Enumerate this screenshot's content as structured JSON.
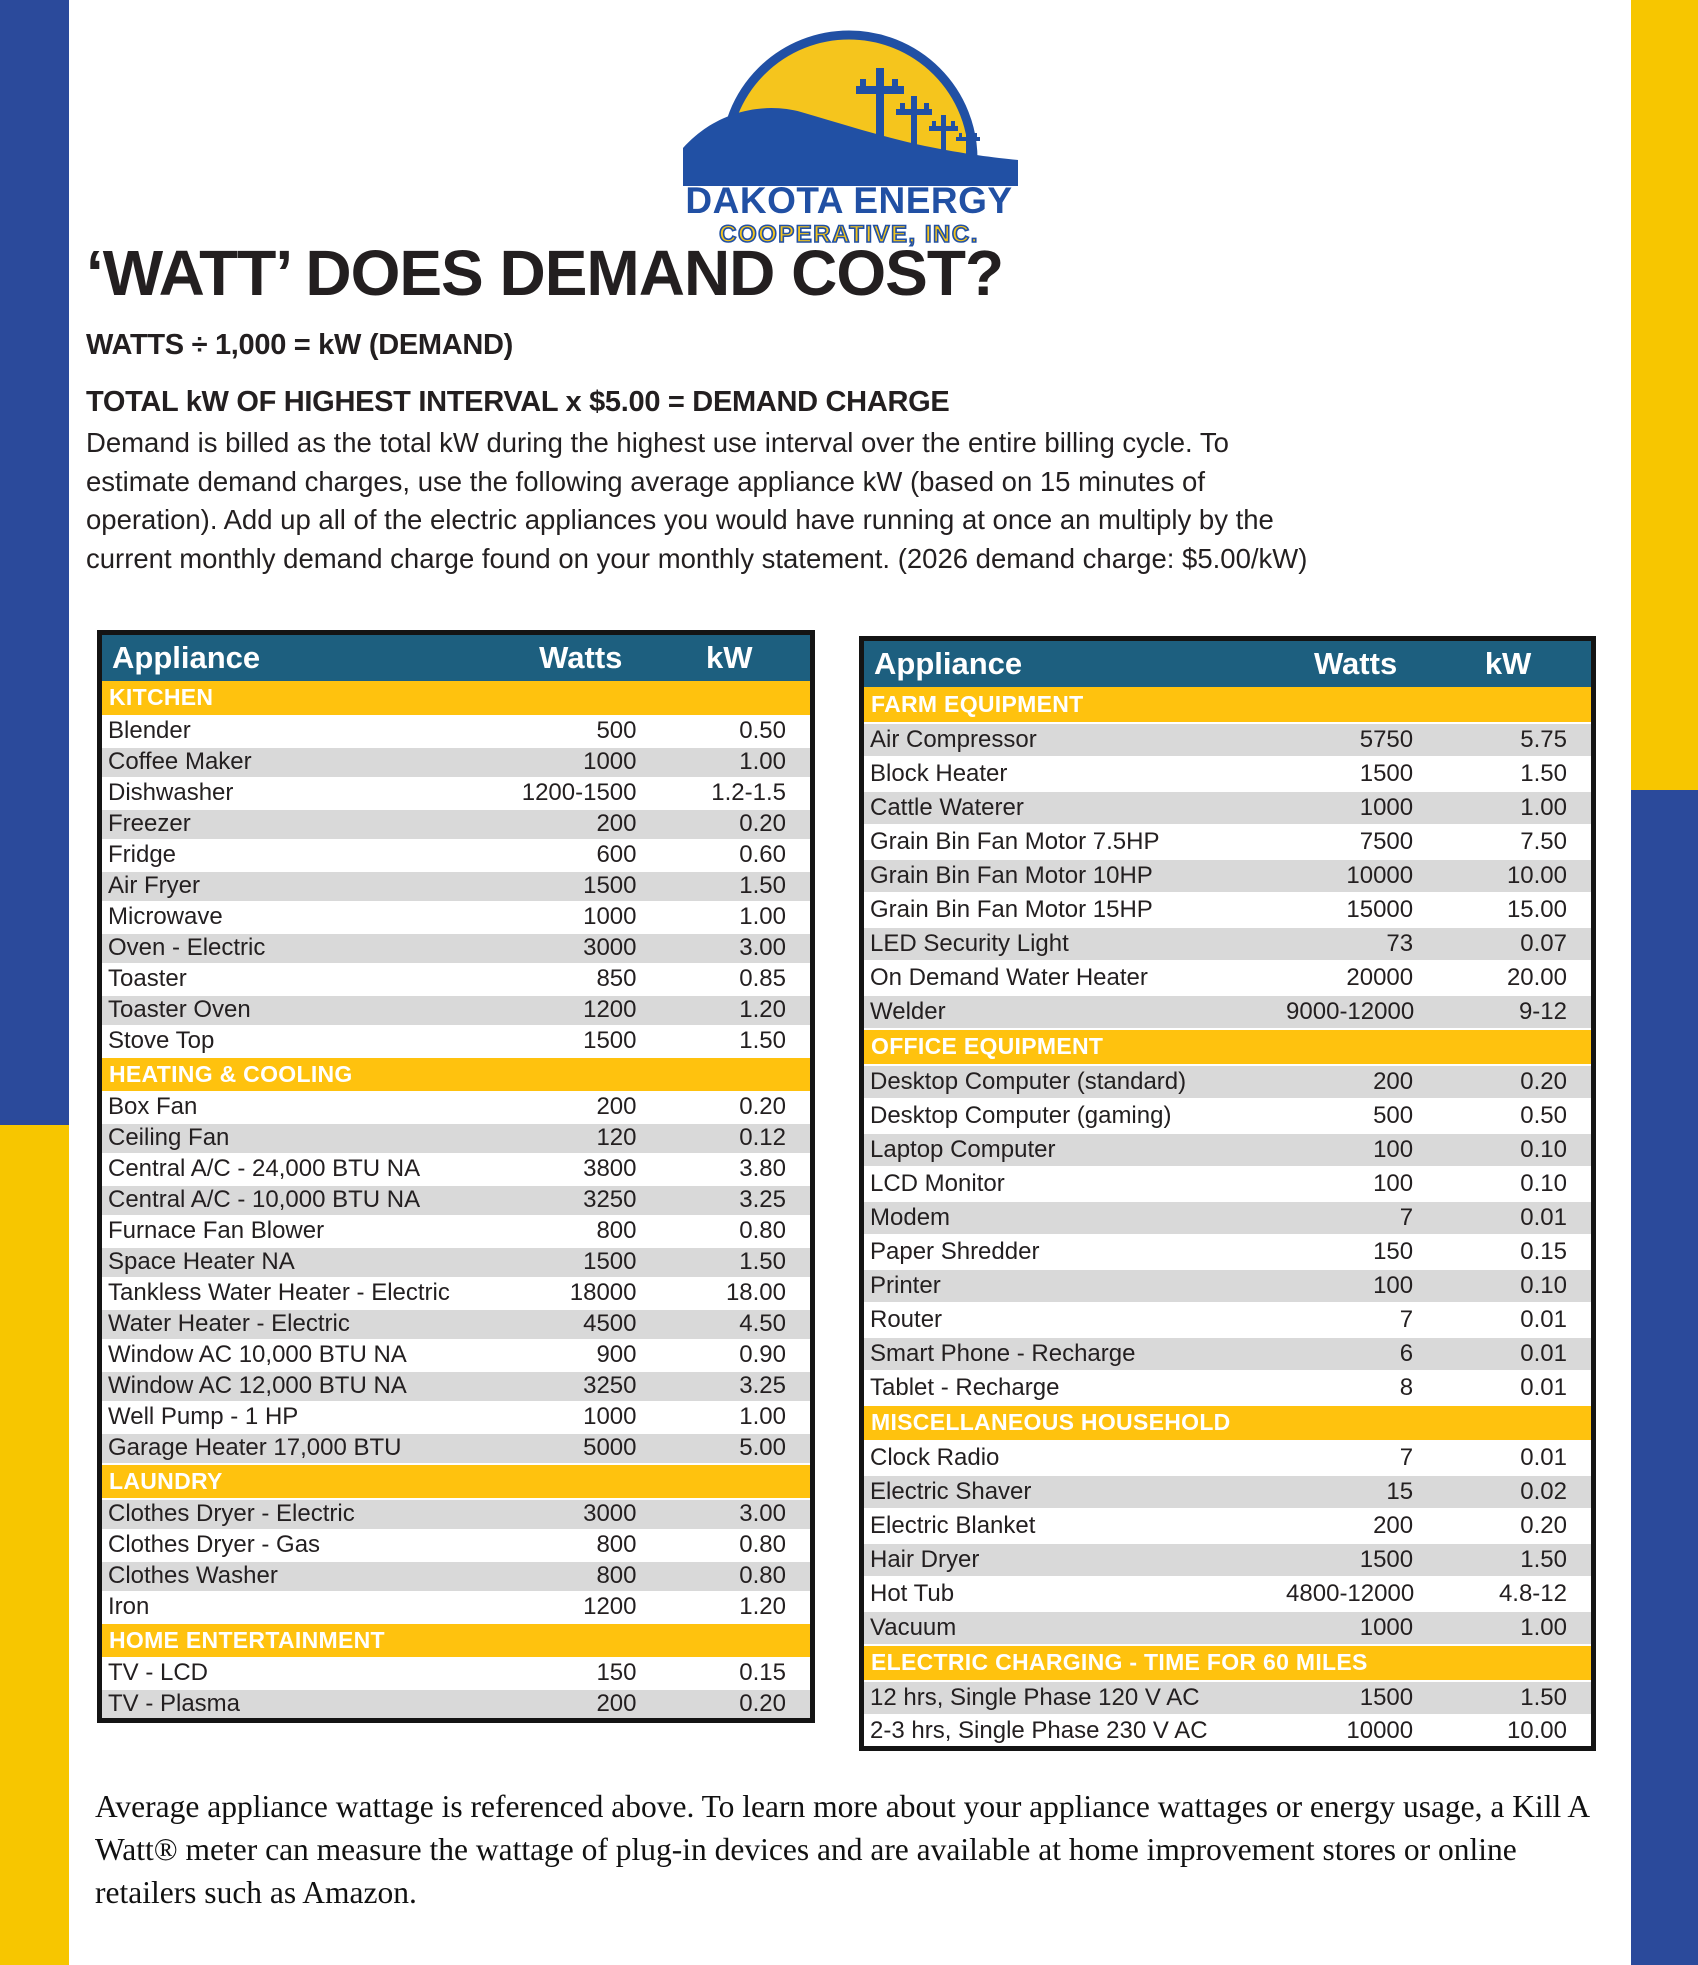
{
  "logo": {
    "name": "DAKOTA ENERGY",
    "subname": "COOPERATIVE, INC."
  },
  "title": "‘WATT’ DOES DEMAND COST?",
  "formula_line1": "WATTS ÷ 1,000 = kW (DEMAND)",
  "formula_line2": "TOTAL kW OF HIGHEST INTERVAL x $5.00 = DEMAND CHARGE",
  "intro": "Demand is billed as the total kW during the highest use interval over the entire billing cycle. To estimate demand charges, use the following average appliance kW (based on 15 minutes of operation). Add up all of the electric appliances you would have running at once an multiply by the current monthly demand charge found on your monthly statement. (2026 demand charge: $5.00/kW)",
  "tables": [
    {
      "columns": [
        "Appliance",
        "Watts",
        "kW"
      ],
      "sections": [
        {
          "category": "KITCHEN",
          "rows": [
            [
              "Blender",
              "500",
              "0.50"
            ],
            [
              "Coffee Maker",
              "1000",
              "1.00"
            ],
            [
              "Dishwasher",
              "1200-1500",
              "1.2-1.5"
            ],
            [
              "Freezer",
              "200",
              "0.20"
            ],
            [
              "Fridge",
              "600",
              "0.60"
            ],
            [
              "Air Fryer",
              "1500",
              "1.50"
            ],
            [
              "Microwave",
              "1000",
              "1.00"
            ],
            [
              "Oven - Electric",
              "3000",
              "3.00"
            ],
            [
              "Toaster",
              "850",
              "0.85"
            ],
            [
              "Toaster Oven",
              "1200",
              "1.20"
            ],
            [
              "Stove Top",
              "1500",
              "1.50"
            ]
          ]
        },
        {
          "category": "HEATING & COOLING",
          "rows": [
            [
              "Box Fan",
              "200",
              "0.20"
            ],
            [
              "Ceiling Fan",
              "120",
              "0.12"
            ],
            [
              "Central A/C - 24,000 BTU NA",
              "3800",
              "3.80"
            ],
            [
              "Central A/C - 10,000 BTU NA",
              "3250",
              "3.25"
            ],
            [
              "Furnace Fan Blower",
              "800",
              "0.80"
            ],
            [
              "Space Heater NA",
              "1500",
              "1.50"
            ],
            [
              "Tankless Water Heater - Electric",
              "18000",
              "18.00"
            ],
            [
              "Water Heater - Electric",
              "4500",
              "4.50"
            ],
            [
              "Window AC 10,000 BTU NA",
              "900",
              "0.90"
            ],
            [
              "Window AC 12,000 BTU NA",
              "3250",
              "3.25"
            ],
            [
              "Well Pump - 1 HP",
              "1000",
              "1.00"
            ],
            [
              "Garage Heater 17,000 BTU",
              "5000",
              "5.00"
            ]
          ]
        },
        {
          "category": "LAUNDRY",
          "rows": [
            [
              "Clothes Dryer - Electric",
              "3000",
              "3.00"
            ],
            [
              "Clothes Dryer - Gas",
              "800",
              "0.80"
            ],
            [
              "Clothes Washer",
              "800",
              "0.80"
            ],
            [
              "Iron",
              "1200",
              "1.20"
            ]
          ]
        },
        {
          "category": "HOME ENTERTAINMENT",
          "rows": [
            [
              "TV - LCD",
              "150",
              "0.15"
            ],
            [
              "TV - Plasma",
              "200",
              "0.20"
            ]
          ]
        }
      ]
    },
    {
      "columns": [
        "Appliance",
        "Watts",
        "kW"
      ],
      "sections": [
        {
          "category": "FARM EQUIPMENT",
          "rows": [
            [
              "Air Compressor",
              "5750",
              "5.75"
            ],
            [
              "Block Heater",
              "1500",
              "1.50"
            ],
            [
              "Cattle Waterer",
              "1000",
              "1.00"
            ],
            [
              "Grain Bin Fan Motor 7.5HP",
              "7500",
              "7.50"
            ],
            [
              "Grain Bin Fan Motor 10HP",
              "10000",
              "10.00"
            ],
            [
              "Grain Bin Fan Motor 15HP",
              "15000",
              "15.00"
            ],
            [
              "LED Security Light",
              "73",
              "0.07"
            ],
            [
              "On Demand Water Heater",
              "20000",
              "20.00"
            ],
            [
              "Welder",
              "9000-12000",
              "9-12"
            ]
          ]
        },
        {
          "category": "OFFICE EQUIPMENT",
          "rows": [
            [
              "Desktop Computer (standard)",
              "200",
              "0.20"
            ],
            [
              "Desktop Computer (gaming)",
              "500",
              "0.50"
            ],
            [
              "Laptop Computer",
              "100",
              "0.10"
            ],
            [
              "LCD Monitor",
              "100",
              "0.10"
            ],
            [
              "Modem",
              "7",
              "0.01"
            ],
            [
              "Paper Shredder",
              "150",
              "0.15"
            ],
            [
              "Printer",
              "100",
              "0.10"
            ],
            [
              "Router",
              "7",
              "0.01"
            ],
            [
              "Smart Phone - Recharge",
              "6",
              "0.01"
            ],
            [
              "Tablet - Recharge",
              "8",
              "0.01"
            ]
          ]
        },
        {
          "category": "MISCELLANEOUS HOUSEHOLD",
          "rows": [
            [
              "Clock Radio",
              "7",
              "0.01"
            ],
            [
              "Electric Shaver",
              "15",
              "0.02"
            ],
            [
              "Electric Blanket",
              "200",
              "0.20"
            ],
            [
              "Hair Dryer",
              "1500",
              "1.50"
            ],
            [
              "Hot Tub",
              "4800-12000",
              "4.8-12"
            ],
            [
              "Vacuum",
              "1000",
              "1.00"
            ]
          ]
        },
        {
          "category": "ELECTRIC CHARGING - TIME FOR 60 MILES",
          "rows": [
            [
              "12 hrs, Single Phase 120 V AC",
              "1500",
              "1.50"
            ],
            [
              "2-3 hrs, Single Phase 230 V AC",
              "10000",
              "10.00"
            ]
          ]
        }
      ]
    }
  ],
  "footer": "Average appliance wattage is referenced above. To learn more about your appliance wattages or energy usage, a Kill A Watt® meter can measure the wattage of plug-in devices and are available at home improvement stores or online retailers such as Amazon.",
  "colors": {
    "header_teal": "#1D5F7F",
    "category_yellow": "#FFC20E",
    "row_gray": "#D9D9D9",
    "side_blue": "#2B4A9B",
    "side_yellow": "#F7C600",
    "logo_blue": "#2150A4",
    "logo_sun_yellow": "#F5C51D"
  }
}
